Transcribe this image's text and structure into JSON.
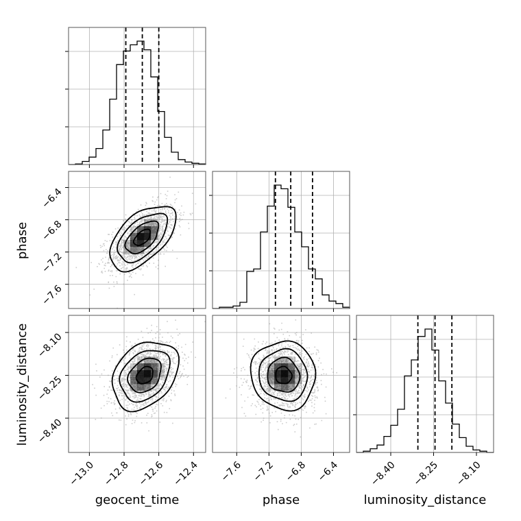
{
  "chart_data": {
    "type": "corner",
    "parameters": [
      {
        "name": "geocent_time",
        "label": "geocent_time",
        "range": [
          -13.12,
          -12.33
        ],
        "ticks": [
          -13.0,
          -12.8,
          -12.6,
          -12.4
        ],
        "tick_labels": [
          "−13.0",
          "−12.8",
          "−12.6",
          "−12.4"
        ],
        "quantiles": [
          -12.79,
          -12.695,
          -12.6
        ],
        "histogram": {
          "bin_edges": [
            -13.12,
            -13.0805,
            -13.041,
            -13.0015,
            -12.962,
            -12.9225,
            -12.883,
            -12.8435,
            -12.804,
            -12.7645,
            -12.725,
            -12.6855,
            -12.646,
            -12.6065,
            -12.567,
            -12.5275,
            -12.488,
            -12.4485,
            -12.409,
            -12.3695,
            -12.33
          ],
          "counts": [
            0.0,
            0.005,
            0.025,
            0.06,
            0.13,
            0.28,
            0.53,
            0.81,
            0.92,
            0.97,
            1.0,
            0.93,
            0.71,
            0.43,
            0.22,
            0.1,
            0.04,
            0.02,
            0.01,
            0.005
          ]
        }
      },
      {
        "name": "phase",
        "label": "phase",
        "range": [
          -7.9,
          -6.2
        ],
        "ticks": [
          -7.6,
          -7.2,
          -6.8,
          -6.4
        ],
        "tick_labels": [
          "−7.6",
          "−7.2",
          "−6.8",
          "−6.4"
        ],
        "quantiles": [
          -7.12,
          -6.93,
          -6.66
        ],
        "histogram": {
          "bin_edges": [
            -7.9,
            -7.815,
            -7.73,
            -7.645,
            -7.56,
            -7.475,
            -7.39,
            -7.305,
            -7.22,
            -7.135,
            -7.05,
            -6.965,
            -6.88,
            -6.795,
            -6.71,
            -6.625,
            -6.54,
            -6.455,
            -6.37,
            -6.285,
            -6.2
          ],
          "counts": [
            0.0,
            0.01,
            0.01,
            0.02,
            0.05,
            0.3,
            0.32,
            0.62,
            0.83,
            1.0,
            0.97,
            0.82,
            0.62,
            0.5,
            0.32,
            0.24,
            0.11,
            0.06,
            0.04,
            0.01
          ]
        }
      },
      {
        "name": "luminosity_distance",
        "label": "luminosity_distance",
        "range": [
          -8.52,
          -8.04
        ],
        "ticks": [
          -8.4,
          -8.25,
          -8.1
        ],
        "tick_labels": [
          "−8.40",
          "−8.25",
          "−8.10"
        ],
        "quantiles": [
          -8.305,
          -8.245,
          -8.186
        ],
        "histogram": {
          "bin_edges": [
            -8.52,
            -8.496,
            -8.472,
            -8.448,
            -8.424,
            -8.4,
            -8.376,
            -8.352,
            -8.328,
            -8.304,
            -8.28,
            -8.256,
            -8.232,
            -8.208,
            -8.184,
            -8.16,
            -8.136,
            -8.112,
            -8.088,
            -8.064,
            -8.04
          ],
          "counts": [
            0.0,
            0.01,
            0.03,
            0.06,
            0.13,
            0.22,
            0.35,
            0.62,
            0.75,
            0.94,
            1.0,
            0.83,
            0.58,
            0.4,
            0.23,
            0.12,
            0.05,
            0.02,
            0.01,
            0.0
          ]
        }
      }
    ],
    "pairs": [
      {
        "x": "geocent_time",
        "y": "phase",
        "mean": [
          -12.695,
          -7.02
        ],
        "sd": [
          0.095,
          0.2
        ],
        "corr": 0.55
      },
      {
        "x": "geocent_time",
        "y": "luminosity_distance",
        "mean": [
          -12.68,
          -8.25
        ],
        "sd": [
          0.095,
          0.06
        ],
        "corr": 0.3
      },
      {
        "x": "phase",
        "y": "luminosity_distance",
        "mean": [
          -7.02,
          -8.25
        ],
        "sd": [
          0.2,
          0.06
        ],
        "corr": -0.05
      }
    ],
    "contour_levels": [
      0.118,
      0.393,
      0.675,
      0.865
    ],
    "grid": true,
    "colors": {
      "line": "#000000",
      "density": "#000000",
      "points": "#a0a0a0",
      "grid": "#b0b0b0"
    }
  }
}
